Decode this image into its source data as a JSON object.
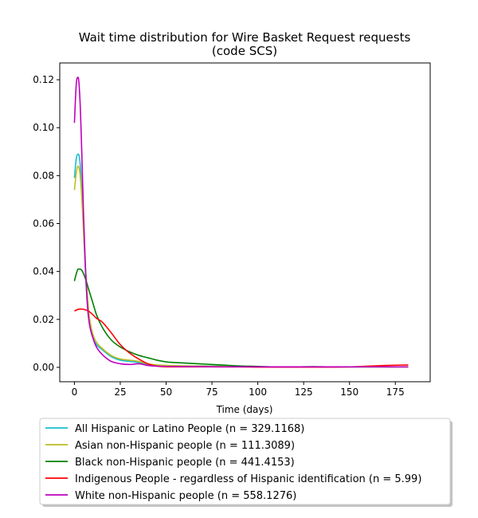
{
  "chart_data": {
    "type": "line",
    "title": "Wait time distribution  for Wire Basket Request  requests",
    "subtitle": "(code SCS)",
    "xlabel": "Time (days)",
    "ylabel": "",
    "xlim": [
      -8,
      194
    ],
    "ylim": [
      -0.006,
      0.127
    ],
    "xticks": [
      0,
      25,
      50,
      75,
      100,
      125,
      150,
      175
    ],
    "xtick_labels": [
      "0",
      "25",
      "50",
      "75",
      "100",
      "125",
      "150",
      "175"
    ],
    "yticks": [
      0.0,
      0.02,
      0.04,
      0.06,
      0.08,
      0.1,
      0.12
    ],
    "ytick_labels": [
      "0.00",
      "0.02",
      "0.04",
      "0.06",
      "0.08",
      "0.10",
      "0.12"
    ],
    "grid": false,
    "legend_position": "bottom",
    "series": [
      {
        "name": "All Hispanic or Latino People (n = 329.1168)",
        "color": "#17becf",
        "x": [
          0,
          1,
          2,
          3,
          4,
          5,
          6,
          7,
          8,
          10,
          12,
          15,
          20,
          25,
          30,
          35,
          40,
          45,
          50,
          60,
          70,
          80,
          90,
          100,
          110,
          120,
          130,
          140,
          150,
          160,
          170,
          182
        ],
        "y": [
          0.079,
          0.087,
          0.089,
          0.086,
          0.074,
          0.057,
          0.04,
          0.027,
          0.019,
          0.0125,
          0.0095,
          0.0075,
          0.0045,
          0.003,
          0.0025,
          0.002,
          0.0012,
          0.0008,
          0.0006,
          0.0006,
          0.0006,
          0.0005,
          0.0004,
          0.0003,
          0.0002,
          0.0002,
          0.0002,
          0.0002,
          0.0002,
          0.0002,
          0.0002,
          0.0002
        ]
      },
      {
        "name": "Asian non-Hispanic people (n = 111.3089)",
        "color": "#bcbd22",
        "x": [
          0,
          1,
          2,
          3,
          4,
          5,
          6,
          7,
          8,
          10,
          12,
          15,
          20,
          25,
          30,
          35,
          40,
          45,
          50,
          60,
          70,
          80,
          90,
          100,
          110,
          120,
          130,
          140,
          150,
          160,
          170,
          182
        ],
        "y": [
          0.074,
          0.081,
          0.084,
          0.081,
          0.071,
          0.056,
          0.042,
          0.031,
          0.022,
          0.014,
          0.0105,
          0.008,
          0.005,
          0.0035,
          0.003,
          0.0025,
          0.0015,
          0.001,
          0.0008,
          0.0006,
          0.0005,
          0.0004,
          0.0003,
          0.0002,
          0.0002,
          0.0002,
          0.0002,
          0.0002,
          0.0002,
          0.0002,
          0.0002,
          0.0002
        ]
      },
      {
        "name": "Black non-Hispanic people (n = 441.4153)",
        "color": "#008000",
        "x": [
          0,
          1,
          2,
          3,
          4,
          5,
          6,
          8,
          10,
          12,
          15,
          20,
          25,
          30,
          35,
          40,
          45,
          50,
          60,
          70,
          80,
          90,
          100,
          110,
          120,
          130,
          140,
          150,
          160,
          170,
          182
        ],
        "y": [
          0.036,
          0.039,
          0.041,
          0.041,
          0.0405,
          0.039,
          0.037,
          0.032,
          0.027,
          0.022,
          0.017,
          0.0115,
          0.0085,
          0.0065,
          0.005,
          0.004,
          0.003,
          0.0023,
          0.0018,
          0.0014,
          0.001,
          0.0006,
          0.0004,
          0.0002,
          0.0002,
          0.0003,
          0.0002,
          0.0002,
          0.0002,
          0.0002,
          0.0002
        ]
      },
      {
        "name": "Indigenous People - regardless of Hispanic identification (n = 5.99)",
        "color": "#ff0000",
        "x": [
          0,
          2,
          4,
          6,
          8,
          10,
          12,
          15,
          20,
          25,
          30,
          35,
          40,
          45,
          50,
          55,
          60,
          70,
          80,
          90,
          100,
          110,
          120,
          130,
          140,
          150,
          160,
          170,
          182
        ],
        "y": [
          0.0235,
          0.0242,
          0.0243,
          0.024,
          0.0233,
          0.022,
          0.0205,
          0.019,
          0.0145,
          0.0095,
          0.006,
          0.0035,
          0.0015,
          0.0005,
          0.0002,
          0.0002,
          0.0002,
          0.0002,
          0.0002,
          0.0002,
          0.0001,
          0.0001,
          0.0001,
          0.0001,
          0.0001,
          0.0002,
          0.0005,
          0.0008,
          0.001
        ]
      },
      {
        "name": "White non-Hispanic people (n = 558.1276)",
        "color": "#bf00bf",
        "x": [
          0,
          1,
          2,
          3,
          4,
          5,
          6,
          7,
          8,
          10,
          12,
          15,
          18,
          20,
          25,
          30,
          35,
          40,
          45,
          50,
          60,
          70,
          80,
          90,
          100,
          110,
          120,
          130,
          140,
          150,
          160,
          170,
          182
        ],
        "y": [
          0.102,
          0.118,
          0.121,
          0.112,
          0.09,
          0.063,
          0.042,
          0.027,
          0.019,
          0.0125,
          0.0085,
          0.0055,
          0.0035,
          0.0025,
          0.0015,
          0.0012,
          0.0015,
          0.0008,
          0.0005,
          0.0004,
          0.0003,
          0.0003,
          0.0002,
          0.0002,
          0.0002,
          0.0002,
          0.0002,
          0.0002,
          0.0002,
          0.0002,
          0.0002,
          0.0002,
          0.0002
        ]
      }
    ]
  }
}
